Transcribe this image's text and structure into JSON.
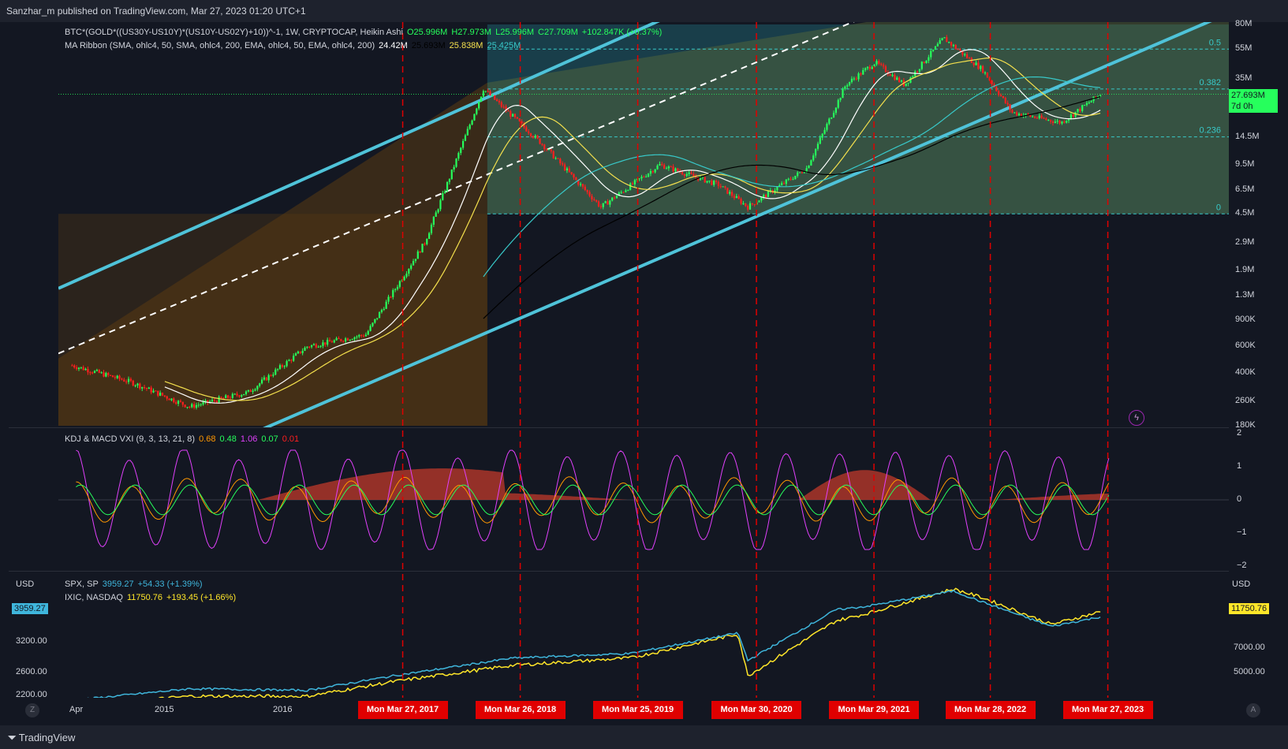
{
  "header": {
    "published": "Sanzhar_m published on TradingView.com, Mar 27, 2023 01:20 UTC+1"
  },
  "colors": {
    "background": "#131722",
    "bull": "#26ff5c",
    "bear": "#ff1f1f",
    "channel": "#4fc3d9",
    "spx": "#3fb6dc",
    "ixic": "#ffe629",
    "marker": "#e00000",
    "ma_fast": "#ffffff",
    "ma_yellow": "#f4e04d",
    "ma_cyan": "#38c9c9",
    "ma_black": "#000000"
  },
  "main": {
    "legend_line1": {
      "symbol": "BTC*(GOLD*((US30Y-US10Y)*(US10Y-US02Y)+10))^-1, 1W, CRYPTOCAP, Heikin Ashi",
      "o": "O25.996M",
      "h": "H27.973M",
      "l": "L25.996M",
      "c": "C27.709M",
      "chg": "+102.847K (+0.37%)"
    },
    "legend_line2": {
      "name": "MA Ribbon (SMA, ohlc4, 50, SMA, ohlc4, 200, EMA, ohlc4, 50, EMA, ohlc4, 200)",
      "v1": "24.42M",
      "v2": "25.693M",
      "v3": "25.838M",
      "v4": "25.425M"
    },
    "price_axis": [
      "80M",
      "55M",
      "35M",
      "14.5M",
      "9.5M",
      "6.5M",
      "4.5M",
      "2.9M",
      "1.9M",
      "1.3M",
      "900K",
      "600K",
      "400K",
      "260K",
      "180K"
    ],
    "last_price": "27.693M",
    "last_time": "7d 0h",
    "fib": [
      {
        "level": "0.5"
      },
      {
        "level": "0.382"
      },
      {
        "level": "0.236"
      },
      {
        "level": "0"
      }
    ]
  },
  "kdj": {
    "legend": "KDJ & MACD VXI (9, 3, 13, 21, 8)",
    "values": [
      "0.68",
      "0.48",
      "1.06",
      "0.07",
      "0.01"
    ],
    "axis": [
      "2",
      "1",
      "0",
      "−1",
      "−2"
    ]
  },
  "indices": {
    "currency": "USD",
    "spx_legend": {
      "name": "SPX, SP",
      "value": "3959.27",
      "chg": "+54.33 (+1.39%)"
    },
    "ixic_legend": {
      "name": "IXIC, NASDAQ",
      "value": "11750.76",
      "chg": "+193.45 (+1.66%)"
    },
    "left_axis": [
      "3200.00",
      "2600.00",
      "2200.00"
    ],
    "right_axis": [
      "7000.00",
      "5000.00"
    ],
    "spx_tag": "3959.27",
    "ixic_tag": "11750.76"
  },
  "time_axis": {
    "labels": [
      "Apr",
      "2015",
      "2016"
    ],
    "markers": [
      "Mon Mar 27, 2017",
      "Mon Mar 26, 2018",
      "Mon Mar 25, 2019",
      "Mon Mar 30, 2020",
      "Mon Mar 29, 2021",
      "Mon Mar 28, 2022",
      "Mon Mar 27, 2023"
    ]
  },
  "footer": {
    "brand": "TradingView",
    "z_label": "Z",
    "a_label": "A"
  },
  "chart_data": [
    {
      "type": "line",
      "title": "BTC*(GOLD*((US30Y-US10Y)*(US10Y-US02Y)+10))^-1, 1W, Heikin Ashi",
      "scale": "log",
      "x": [
        "2014-06",
        "2014-12",
        "2015-06",
        "2015-12",
        "2016-06",
        "2016-12",
        "2017-06",
        "2017-12",
        "2018-06",
        "2018-12",
        "2019-06",
        "2019-12",
        "2020-03",
        "2020-09",
        "2021-01",
        "2021-04",
        "2021-07",
        "2021-11",
        "2022-03",
        "2022-06",
        "2022-11",
        "2023-03"
      ],
      "series": [
        {
          "name": "Price",
          "values": [
            0.45,
            0.35,
            0.24,
            0.3,
            0.6,
            0.72,
            2.9,
            30,
            13,
            5,
            9.5,
            7,
            5,
            9,
            32,
            45,
            32,
            65,
            40,
            21,
            18,
            27.7
          ]
        }
      ],
      "ylim": [
        0.18,
        80
      ]
    },
    {
      "type": "line",
      "title": "KDJ & MACD VXI (9, 3, 13, 21, 8)",
      "ylim": [
        -2,
        2
      ]
    },
    {
      "type": "line",
      "scale": "log",
      "x": [
        "2014-06",
        "2015-06",
        "2016-06",
        "2017-03",
        "2018-03",
        "2019-03",
        "2020-02",
        "2020-03",
        "2020-12",
        "2021-03",
        "2021-12",
        "2022-03",
        "2022-10",
        "2023-03"
      ],
      "series": [
        {
          "name": "SPX, SP",
          "values": [
            1950,
            2100,
            2100,
            2350,
            2650,
            2800,
            3350,
            2450,
            3700,
            3900,
            4700,
            4400,
            3600,
            3959.27
          ]
        },
        {
          "name": "IXIC, NASDAQ",
          "values": [
            4350,
            5000,
            4900,
            5850,
            7200,
            7600,
            9700,
            7000,
            12800,
            13300,
            16000,
            14000,
            10500,
            11750.76
          ]
        }
      ]
    }
  ]
}
